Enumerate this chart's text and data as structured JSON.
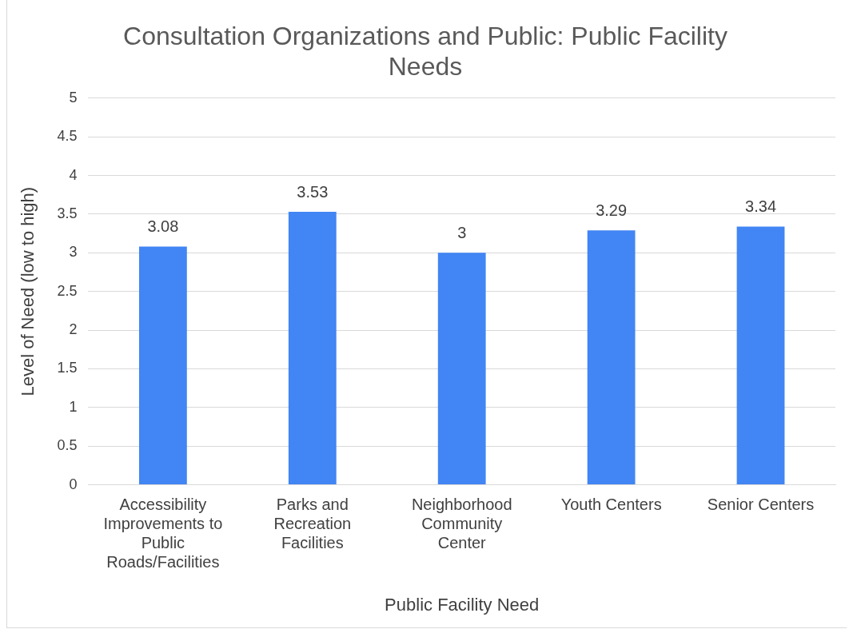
{
  "chart_data": {
    "type": "bar",
    "title": "Consultation Organizations and Public: Public Facility Needs",
    "xlabel": "Public Facility Need",
    "ylabel": "Level of Need (low to high)",
    "categories": [
      "Accessibility Improvements to Public Roads/Facilities",
      "Parks and Recreation Facilities",
      "Neighborhood Community Center",
      "Youth Centers",
      "Senior Centers"
    ],
    "values": [
      3.08,
      3.53,
      3,
      3.29,
      3.34
    ],
    "color": "#4285f4",
    "ylim": [
      0,
      5
    ],
    "yticks": [
      0,
      0.5,
      1,
      1.5,
      2,
      2.5,
      3,
      3.5,
      4,
      4.5,
      5
    ],
    "grid": "y",
    "data_labels": true,
    "legend": false
  }
}
